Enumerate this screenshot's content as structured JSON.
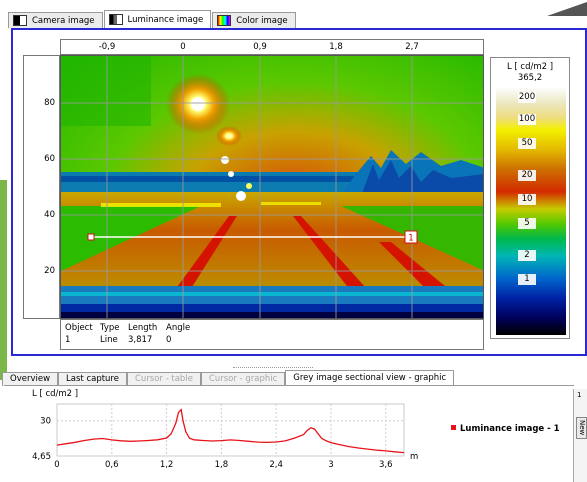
{
  "top_tabs": [
    {
      "label": "Camera image",
      "icon": "camera-image-icon"
    },
    {
      "label": "Luminance image",
      "icon": "luminance-image-icon"
    },
    {
      "label": "Color image",
      "icon": "color-image-icon"
    }
  ],
  "image_view": {
    "x_ticks": [
      "-0,9",
      "0",
      "0,9",
      "1,8",
      "2,7"
    ],
    "y_ticks": [
      "80",
      "60",
      "40",
      "20"
    ],
    "section_line_label": "1"
  },
  "legend": {
    "title": "L [ cd/m2 ]",
    "max_value": "365,2",
    "labels": [
      "200",
      "100",
      "50",
      "20",
      "10",
      "5",
      "2",
      "1"
    ]
  },
  "objects_table": {
    "headers": [
      "Object",
      "Type",
      "Length",
      "Angle"
    ],
    "rows": [
      [
        "1",
        "Line",
        "3,817",
        "0"
      ]
    ]
  },
  "bottom_tabs": [
    {
      "label": "Overview",
      "state": "enabled"
    },
    {
      "label": "Last capture",
      "state": "enabled"
    },
    {
      "label": "Cursor - table",
      "state": "disabled"
    },
    {
      "label": "Cursor - graphic",
      "state": "disabled"
    },
    {
      "label": "Grey image sectional view - graphic",
      "state": "active"
    }
  ],
  "side_panel": {
    "label": "New",
    "marker": "1"
  },
  "chart_data": {
    "type": "line",
    "ylabel": "L [ cd/m2 ]",
    "xlabel": "m",
    "x_ticks": [
      "0",
      "0,6",
      "1,2",
      "1,8",
      "2,4",
      "3",
      "3,6"
    ],
    "y_ticks": [
      "30",
      "4,65"
    ],
    "xlim": [
      0,
      3.8
    ],
    "ylim": [
      4.65,
      42
    ],
    "legend_position": "right",
    "series": [
      {
        "name": "Luminance image - 1",
        "color": "#e8121a",
        "x": [
          0,
          0.1,
          0.2,
          0.3,
          0.4,
          0.5,
          0.6,
          0.7,
          0.8,
          0.9,
          1.0,
          1.1,
          1.2,
          1.25,
          1.3,
          1.33,
          1.36,
          1.38,
          1.41,
          1.45,
          1.5,
          1.6,
          1.7,
          1.8,
          1.9,
          2.0,
          2.1,
          2.2,
          2.3,
          2.4,
          2.5,
          2.6,
          2.7,
          2.74,
          2.78,
          2.82,
          2.86,
          2.9,
          2.95,
          3.0,
          3.1,
          3.2,
          3.3,
          3.4,
          3.5,
          3.6,
          3.7,
          3.8
        ],
        "y": [
          12.5,
          13.5,
          14.5,
          15.8,
          16.8,
          17.2,
          16.2,
          15.6,
          15.2,
          15.4,
          15.8,
          16.3,
          17.6,
          20.5,
          28,
          36,
          38,
          30,
          22,
          17.5,
          16.3,
          15.8,
          15.4,
          15.7,
          16.2,
          15.8,
          15.2,
          14.6,
          14.4,
          14.7,
          15.5,
          17.5,
          20,
          23,
          25,
          24,
          20.5,
          17.2,
          15.5,
          14.3,
          12.7,
          11.4,
          10.4,
          9.6,
          8.9,
          8.3,
          7.7,
          7.1
        ]
      }
    ]
  }
}
